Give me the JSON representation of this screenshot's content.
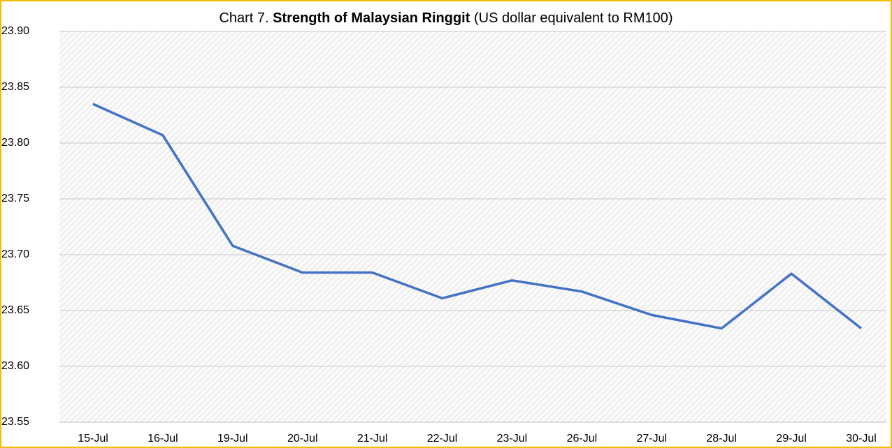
{
  "chart_data": {
    "type": "line",
    "title": [
      "Chart 7. ",
      "Strength of Malaysian Ringgit",
      " (US dollar equivalent to RM100)"
    ],
    "categories": [
      "15-Jul",
      "16-Jul",
      "19-Jul",
      "20-Jul",
      "21-Jul",
      "22-Jul",
      "23-Jul",
      "26-Jul",
      "27-Jul",
      "28-Jul",
      "29-Jul",
      "30-Jul"
    ],
    "values": [
      23.835,
      23.807,
      23.708,
      23.684,
      23.684,
      23.661,
      23.677,
      23.667,
      23.646,
      23.634,
      23.683,
      23.634
    ],
    "color": "#4472c4",
    "ylim": [
      23.55,
      23.9
    ],
    "yticks": [
      23.55,
      {
        "value": 23.6,
        "label": "23.60"
      },
      23.65,
      {
        "value": 23.7,
        "label": "23.70"
      },
      23.75,
      {
        "value": 23.8,
        "label": "23.80"
      },
      23.85,
      {
        "value": 23.9,
        "label": "23.90"
      }
    ],
    "grid": true
  }
}
